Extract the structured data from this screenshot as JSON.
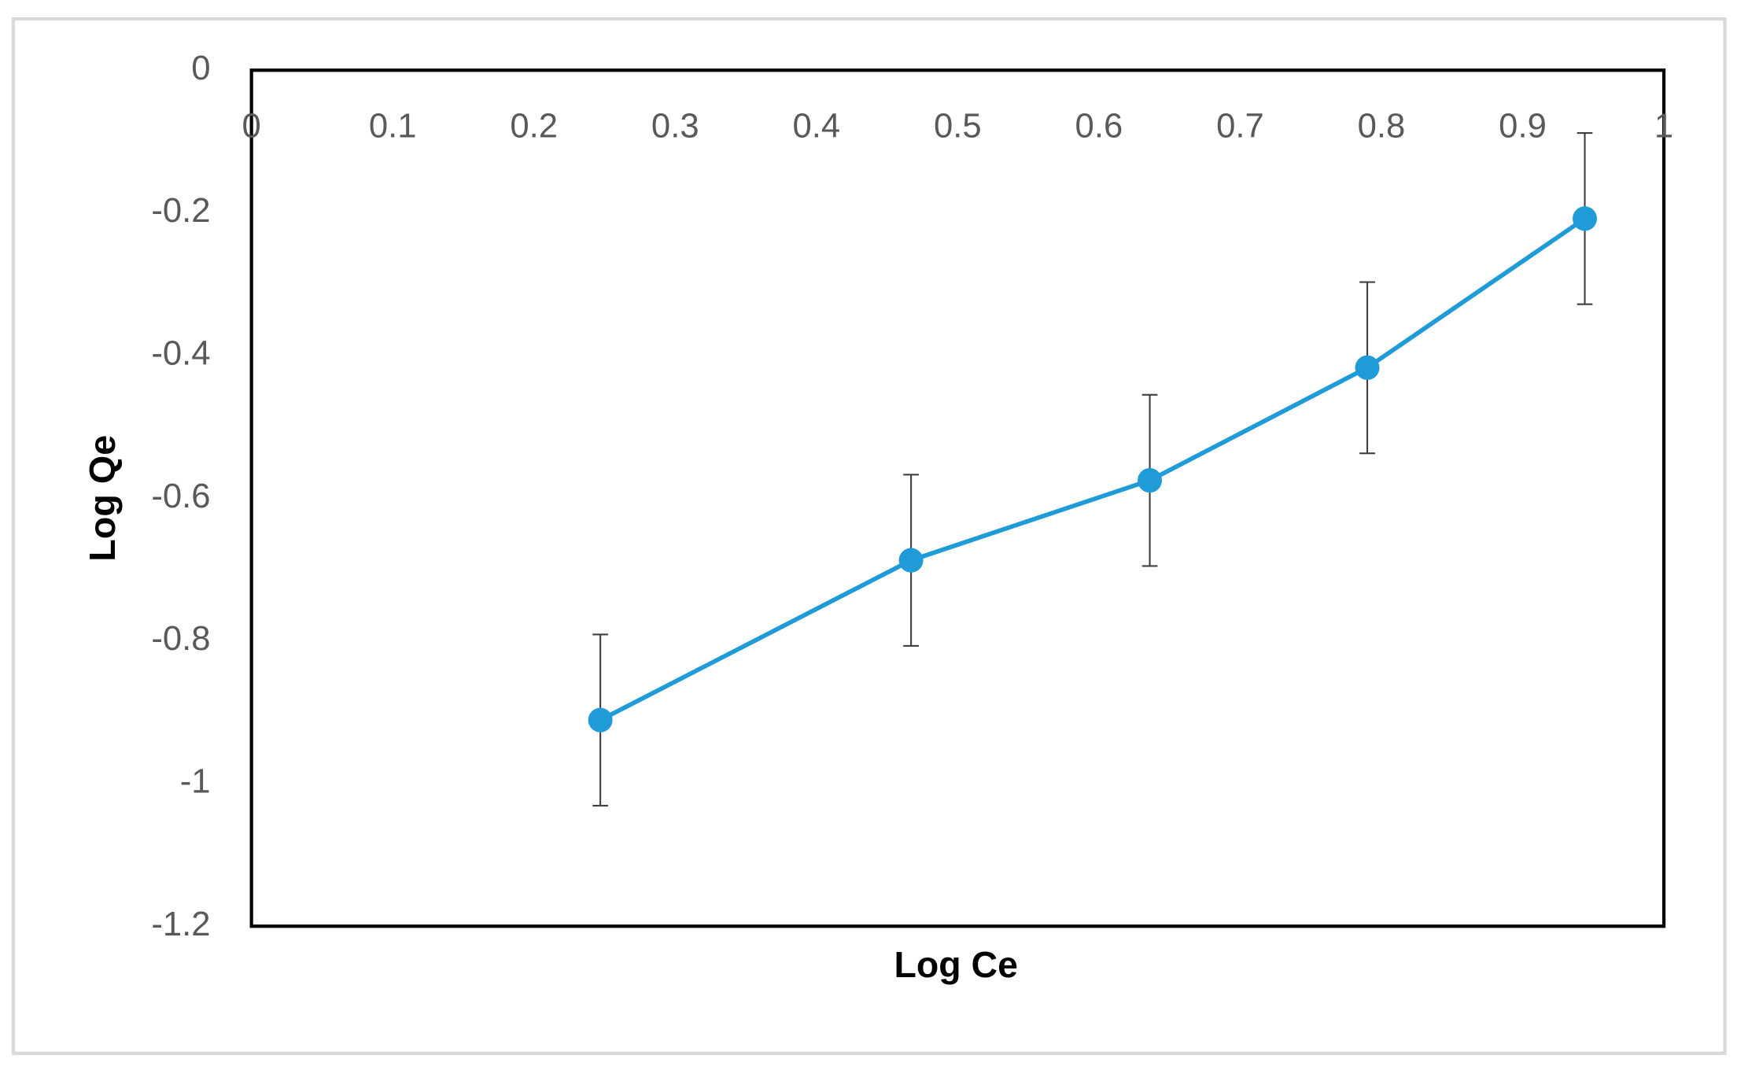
{
  "chart_data": {
    "type": "line",
    "x_label": "Log Ce",
    "y_label": "Log Qe",
    "series": [
      {
        "color": "#1f9bd7",
        "x": [
          0.247,
          0.467,
          0.636,
          0.79,
          0.944
        ],
        "values": [
          -0.911,
          -0.687,
          -0.575,
          -0.417,
          -0.208
        ],
        "errors": [
          0.12,
          0.12,
          0.12,
          0.12,
          0.12
        ]
      }
    ],
    "xlim": [
      0,
      1
    ],
    "xticks": [
      0,
      0.1,
      0.2,
      0.3,
      0.4,
      0.5,
      0.6,
      0.7,
      0.8,
      0.9,
      1
    ],
    "ylim": [
      -1.2,
      0
    ],
    "yticks": [
      0,
      -0.2,
      -0.4,
      -0.6,
      -0.8,
      -1,
      -1.2
    ],
    "grid": false
  }
}
